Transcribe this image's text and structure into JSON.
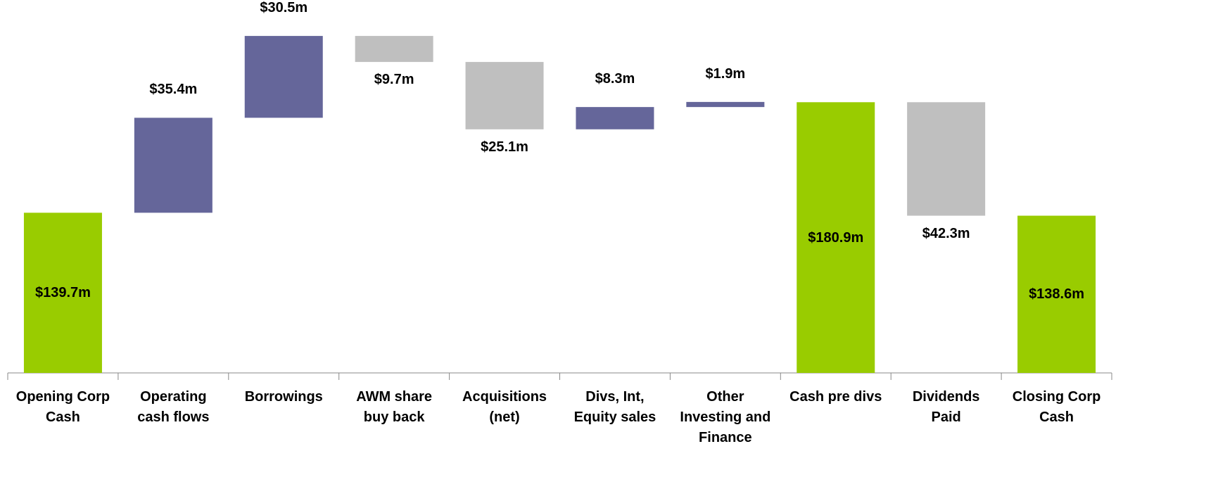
{
  "chart_data": {
    "type": "waterfall",
    "categories": [
      "Opening Corp\nCash",
      "Operating\ncash flows",
      "Borrowings",
      "AWM share\nbuy back",
      "Acquisitions\n(net)",
      "Divs, Int,\nEquity sales",
      "Other\nInvesting and\nFinance",
      "Cash pre divs",
      "Dividends\nPaid",
      "Closing Corp\nCash"
    ],
    "values": [
      139.7,
      35.4,
      30.5,
      -9.7,
      -25.1,
      8.3,
      1.9,
      180.9,
      -42.3,
      138.6
    ],
    "value_labels": [
      "$139.7m",
      "$35.4m",
      "$30.5m",
      "$9.7m",
      "$25.1m",
      "$8.3m",
      "$1.9m",
      "$180.9m",
      "$42.3m",
      "$138.6m"
    ],
    "measure": [
      "total",
      "relative",
      "relative",
      "relative",
      "relative",
      "relative",
      "relative",
      "total",
      "relative",
      "total"
    ],
    "colors": {
      "increase": "#65669a",
      "decrease": "#bfbfbf",
      "total": "#99cc00"
    },
    "ylim": [
      80,
      219
    ]
  }
}
